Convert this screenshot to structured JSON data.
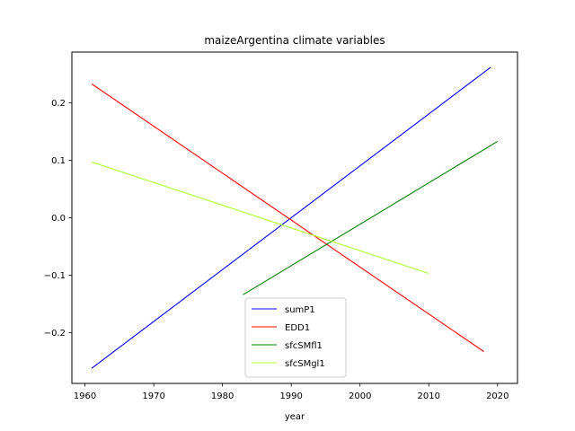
{
  "chart_data": {
    "type": "line",
    "title": "maizeArgentina climate variables",
    "xlabel": "year",
    "ylabel": "",
    "xlim": [
      1958.1,
      2022.9
    ],
    "ylim": [
      -0.2885,
      0.2885
    ],
    "x_ticks": [
      1960,
      1970,
      1980,
      1990,
      2000,
      2010,
      2020
    ],
    "y_ticks": [
      -0.2,
      -0.1,
      0.0,
      0.1,
      0.2
    ],
    "y_tick_labels": [
      "−0.2",
      "−0.1",
      "0.0",
      "0.1",
      "0.2"
    ],
    "grid": false,
    "legend_position": "lower center",
    "series": [
      {
        "name": "sumP1",
        "color": "#0000ff",
        "x": [
          1961,
          2019
        ],
        "y": [
          -0.262,
          0.262
        ]
      },
      {
        "name": "EDD1",
        "color": "#ff0000",
        "x": [
          1961,
          2018
        ],
        "y": [
          0.233,
          -0.233
        ]
      },
      {
        "name": "sfcSMfl1",
        "color": "#008000",
        "x": [
          1983,
          2020
        ],
        "y": [
          -0.134,
          0.133
        ]
      },
      {
        "name": "sfcSMgl1",
        "color": "#adff2f",
        "x": [
          1961,
          2010
        ],
        "y": [
          0.097,
          -0.097
        ]
      }
    ]
  }
}
